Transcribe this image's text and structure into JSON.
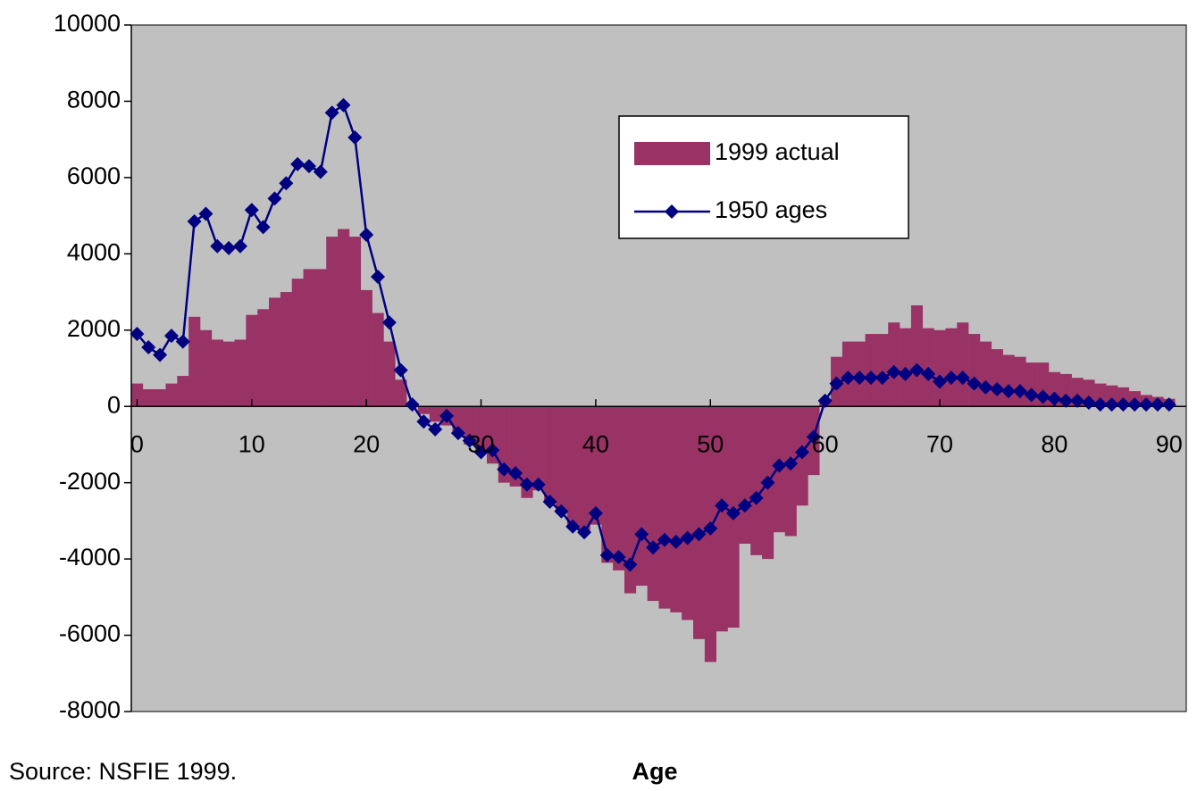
{
  "chart_data": {
    "type": "combo",
    "xlabel": "Age",
    "source": "Source:  NSFIE 1999.",
    "x": [
      0,
      1,
      2,
      3,
      4,
      5,
      6,
      7,
      8,
      9,
      10,
      11,
      12,
      13,
      14,
      15,
      16,
      17,
      18,
      19,
      20,
      21,
      22,
      23,
      24,
      25,
      26,
      27,
      28,
      29,
      30,
      31,
      32,
      33,
      34,
      35,
      36,
      37,
      38,
      39,
      40,
      41,
      42,
      43,
      44,
      45,
      46,
      47,
      48,
      49,
      50,
      51,
      52,
      53,
      54,
      55,
      56,
      57,
      58,
      59,
      60,
      61,
      62,
      63,
      64,
      65,
      66,
      67,
      68,
      69,
      70,
      71,
      72,
      73,
      74,
      75,
      76,
      77,
      78,
      79,
      80,
      81,
      82,
      83,
      84,
      85,
      86,
      87,
      88,
      89,
      90
    ],
    "series": [
      {
        "name": "1999 actual",
        "type": "bar",
        "color": "#993366",
        "values": [
          600,
          450,
          450,
          600,
          800,
          2350,
          2000,
          1750,
          1700,
          1750,
          2400,
          2550,
          2850,
          3000,
          3350,
          3600,
          3600,
          4450,
          4650,
          4450,
          3050,
          2450,
          1700,
          700,
          0,
          -200,
          -400,
          -500,
          -700,
          -1000,
          -1200,
          -1500,
          -2000,
          -2100,
          -2400,
          -2200,
          -2500,
          -2800,
          -3100,
          -3300,
          -3100,
          -4100,
          -4300,
          -4900,
          -4700,
          -5100,
          -5300,
          -5400,
          -5600,
          -6100,
          -6700,
          -5900,
          -5800,
          -3600,
          -3900,
          -4000,
          -3300,
          -3400,
          -2600,
          -1800,
          200,
          1300,
          1700,
          1700,
          1900,
          1900,
          2200,
          2050,
          2650,
          2050,
          2000,
          2050,
          2200,
          1900,
          1700,
          1500,
          1350,
          1300,
          1150,
          1150,
          900,
          850,
          750,
          700,
          600,
          550,
          500,
          400,
          300,
          250,
          200
        ]
      },
      {
        "name": "1950 ages",
        "type": "line",
        "color": "#000080",
        "values": [
          1900,
          1550,
          1350,
          1850,
          1700,
          4850,
          5050,
          4200,
          4150,
          4200,
          5150,
          4700,
          5450,
          5850,
          6350,
          6300,
          6150,
          7700,
          7900,
          7050,
          4500,
          3400,
          2200,
          950,
          50,
          -400,
          -600,
          -250,
          -700,
          -900,
          -1200,
          -1150,
          -1650,
          -1750,
          -2050,
          -2050,
          -2500,
          -2750,
          -3150,
          -3300,
          -2800,
          -3900,
          -3950,
          -4150,
          -3350,
          -3700,
          -3500,
          -3550,
          -3450,
          -3350,
          -3200,
          -2600,
          -2800,
          -2600,
          -2400,
          -2000,
          -1550,
          -1500,
          -1200,
          -800,
          150,
          600,
          750,
          750,
          750,
          750,
          900,
          850,
          950,
          850,
          650,
          750,
          750,
          600,
          500,
          450,
          400,
          400,
          300,
          250,
          200,
          150,
          150,
          100,
          50,
          50,
          50,
          50,
          50,
          50,
          50
        ]
      }
    ],
    "xlim": [
      -0.5,
      91.5
    ],
    "xticks": [
      0,
      10,
      20,
      30,
      40,
      50,
      60,
      70,
      80,
      90
    ],
    "ylim": [
      -8000,
      10000
    ],
    "yticks": [
      -8000,
      -6000,
      -4000,
      -2000,
      0,
      2000,
      4000,
      6000,
      8000,
      10000
    ],
    "plot_background": "#c0c0c0",
    "legend": "upper right"
  }
}
